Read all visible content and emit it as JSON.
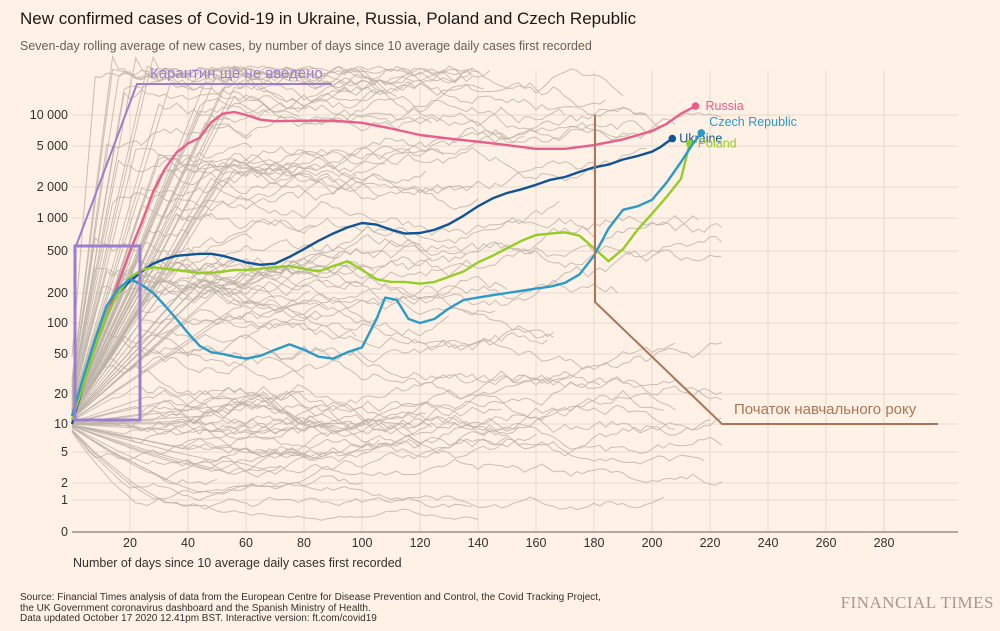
{
  "chart_data": {
    "type": "line",
    "title": "New confirmed cases of Covid-19 in Ukraine, Russia, Poland and Czech Republic",
    "subtitle": "Seven-day rolling average of new cases, by number of days since 10 average daily cases first recorded",
    "xlabel": "Number of days since 10 average daily cases first recorded",
    "ylabel": "",
    "x_ticks": [
      20,
      40,
      60,
      80,
      100,
      120,
      140,
      160,
      180,
      200,
      220,
      240,
      260,
      280
    ],
    "y_ticks": [
      0,
      1,
      2,
      5,
      10,
      20,
      50,
      100,
      200,
      500,
      1000,
      2000,
      5000,
      10000
    ],
    "y_tick_labels": [
      "0",
      "1",
      "2",
      "5",
      "10",
      "20",
      "50",
      "100",
      "200",
      "500",
      "1 000",
      "2 000",
      "5 000",
      "10 000"
    ],
    "xlim": [
      0,
      300
    ],
    "y_scale": "log",
    "series": [
      {
        "name": "Russia",
        "color": "#e95d8c",
        "x": [
          0,
          4,
          8,
          12,
          16,
          20,
          24,
          28,
          32,
          36,
          40,
          44,
          48,
          52,
          56,
          60,
          65,
          70,
          80,
          90,
          100,
          110,
          120,
          130,
          140,
          150,
          160,
          170,
          180,
          190,
          200,
          205,
          210,
          215
        ],
        "y": [
          12,
          30,
          60,
          120,
          250,
          500,
          900,
          1800,
          3000,
          4300,
          5300,
          6000,
          8500,
          10300,
          10700,
          10000,
          9000,
          8700,
          8800,
          8800,
          8400,
          7400,
          6400,
          5900,
          5500,
          5100,
          4700,
          4700,
          5100,
          5800,
          7000,
          8200,
          10300,
          12200
        ]
      },
      {
        "name": "Ukraine",
        "color": "#0f5499",
        "x": [
          0,
          4,
          8,
          12,
          16,
          20,
          24,
          28,
          32,
          36,
          40,
          44,
          48,
          52,
          56,
          60,
          65,
          70,
          75,
          80,
          85,
          90,
          95,
          100,
          105,
          110,
          115,
          120,
          125,
          130,
          135,
          140,
          145,
          150,
          155,
          160,
          165,
          170,
          175,
          180,
          185,
          190,
          195,
          200,
          203,
          205,
          207
        ],
        "y": [
          10,
          25,
          60,
          120,
          200,
          260,
          320,
          380,
          420,
          450,
          460,
          470,
          470,
          450,
          420,
          390,
          370,
          380,
          440,
          520,
          620,
          720,
          820,
          900,
          870,
          780,
          720,
          730,
          780,
          880,
          1050,
          1300,
          1550,
          1750,
          1900,
          2100,
          2350,
          2500,
          2800,
          3100,
          3300,
          3700,
          4000,
          4400,
          4900,
          5400,
          5900
        ]
      },
      {
        "name": "Poland",
        "color": "#96cc28",
        "x": [
          0,
          4,
          8,
          12,
          16,
          20,
          24,
          28,
          32,
          36,
          40,
          44,
          48,
          52,
          56,
          60,
          65,
          70,
          75,
          80,
          85,
          90,
          95,
          100,
          105,
          110,
          115,
          120,
          125,
          130,
          135,
          140,
          145,
          150,
          155,
          160,
          165,
          170,
          175,
          180,
          185,
          190,
          195,
          200,
          205,
          210,
          213
        ],
        "y": [
          11,
          25,
          60,
          120,
          200,
          280,
          330,
          350,
          340,
          330,
          320,
          310,
          310,
          320,
          330,
          330,
          340,
          350,
          360,
          340,
          320,
          360,
          400,
          330,
          270,
          255,
          255,
          245,
          255,
          285,
          320,
          390,
          450,
          530,
          620,
          700,
          720,
          740,
          690,
          530,
          400,
          520,
          780,
          1100,
          1600,
          2400,
          5300
        ]
      },
      {
        "name": "Czech Republic",
        "color": "#2a9bc8",
        "x": [
          0,
          4,
          8,
          12,
          16,
          20,
          24,
          28,
          32,
          36,
          40,
          44,
          48,
          52,
          56,
          60,
          65,
          70,
          75,
          80,
          85,
          90,
          95,
          100,
          105,
          108,
          112,
          116,
          120,
          125,
          130,
          135,
          140,
          145,
          150,
          155,
          160,
          165,
          170,
          175,
          180,
          185,
          190,
          195,
          200,
          205,
          210,
          214,
          217
        ],
        "y": [
          12,
          30,
          70,
          150,
          220,
          270,
          240,
          200,
          150,
          110,
          80,
          60,
          52,
          50,
          47,
          45,
          48,
          55,
          62,
          55,
          47,
          45,
          52,
          58,
          110,
          180,
          170,
          110,
          100,
          110,
          140,
          170,
          180,
          190,
          200,
          210,
          220,
          230,
          250,
          300,
          450,
          800,
          1200,
          1300,
          1500,
          2200,
          3500,
          5200,
          6700
        ]
      }
    ],
    "series_labels": [
      "Russia",
      "Ukraine",
      "Poland",
      "Czech Republic"
    ],
    "annotations": [
      {
        "text": "Карантин ще не введено",
        "color": "#9b7fce"
      },
      {
        "text": "Початок навчального року",
        "color": "#ab7558"
      }
    ]
  },
  "footer": {
    "source_line1": "Source: Financial Times analysis of data from the European Centre for Disease Prevention and Control, the Covid Tracking Project,",
    "source_line2": "the UK Government coronavirus dashboard and the Spanish Ministry of Health.",
    "source_line3": "Data updated October 17 2020 12.41pm BST. Interactive version: ft.com/covid19",
    "logo": "FINANCIAL TIMES"
  },
  "colors": {
    "background": "#fff1e5",
    "background_lines": "#bcb2a8",
    "grid": "#e6d9ce"
  }
}
